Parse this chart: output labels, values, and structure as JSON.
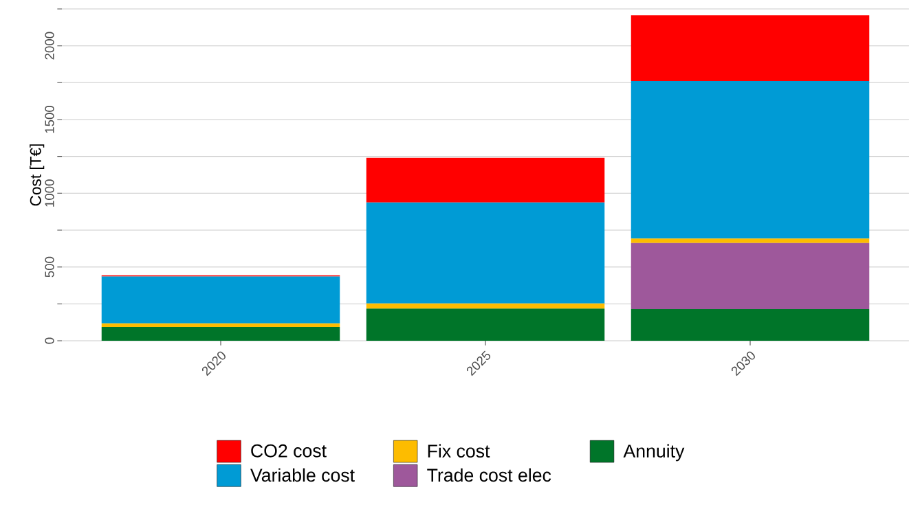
{
  "chart_data": {
    "type": "bar",
    "ylabel": "Cost [T€]",
    "stacked": true,
    "legend": "bottom",
    "grid": "y",
    "categories": [
      "2020",
      "2025",
      "2030"
    ],
    "ylim": [
      0,
      2250
    ],
    "yticks": [
      0,
      {
        "value": 250,
        "label": null
      },
      500,
      {
        "value": 750,
        "label": null
      },
      1000,
      {
        "value": 1250,
        "label": null
      },
      1500,
      {
        "value": 1750,
        "label": null
      },
      2000,
      {
        "value": 2250,
        "label": null
      }
    ],
    "series": [
      {
        "name": "Annuity",
        "color": "#007529",
        "values": [
          93,
          218,
          214
        ]
      },
      {
        "name": "Trade cost elec",
        "color": "#9e589b",
        "values": [
          0,
          0,
          449
        ]
      },
      {
        "name": "Fix cost",
        "color": "#fdbc00",
        "values": [
          25,
          35,
          30
        ]
      },
      {
        "name": "Variable cost",
        "color": "#009bd5",
        "values": [
          317,
          685,
          1068
        ]
      },
      {
        "name": "CO2 cost",
        "color": "#ff0000",
        "values": [
          9,
          302,
          446
        ]
      }
    ]
  }
}
